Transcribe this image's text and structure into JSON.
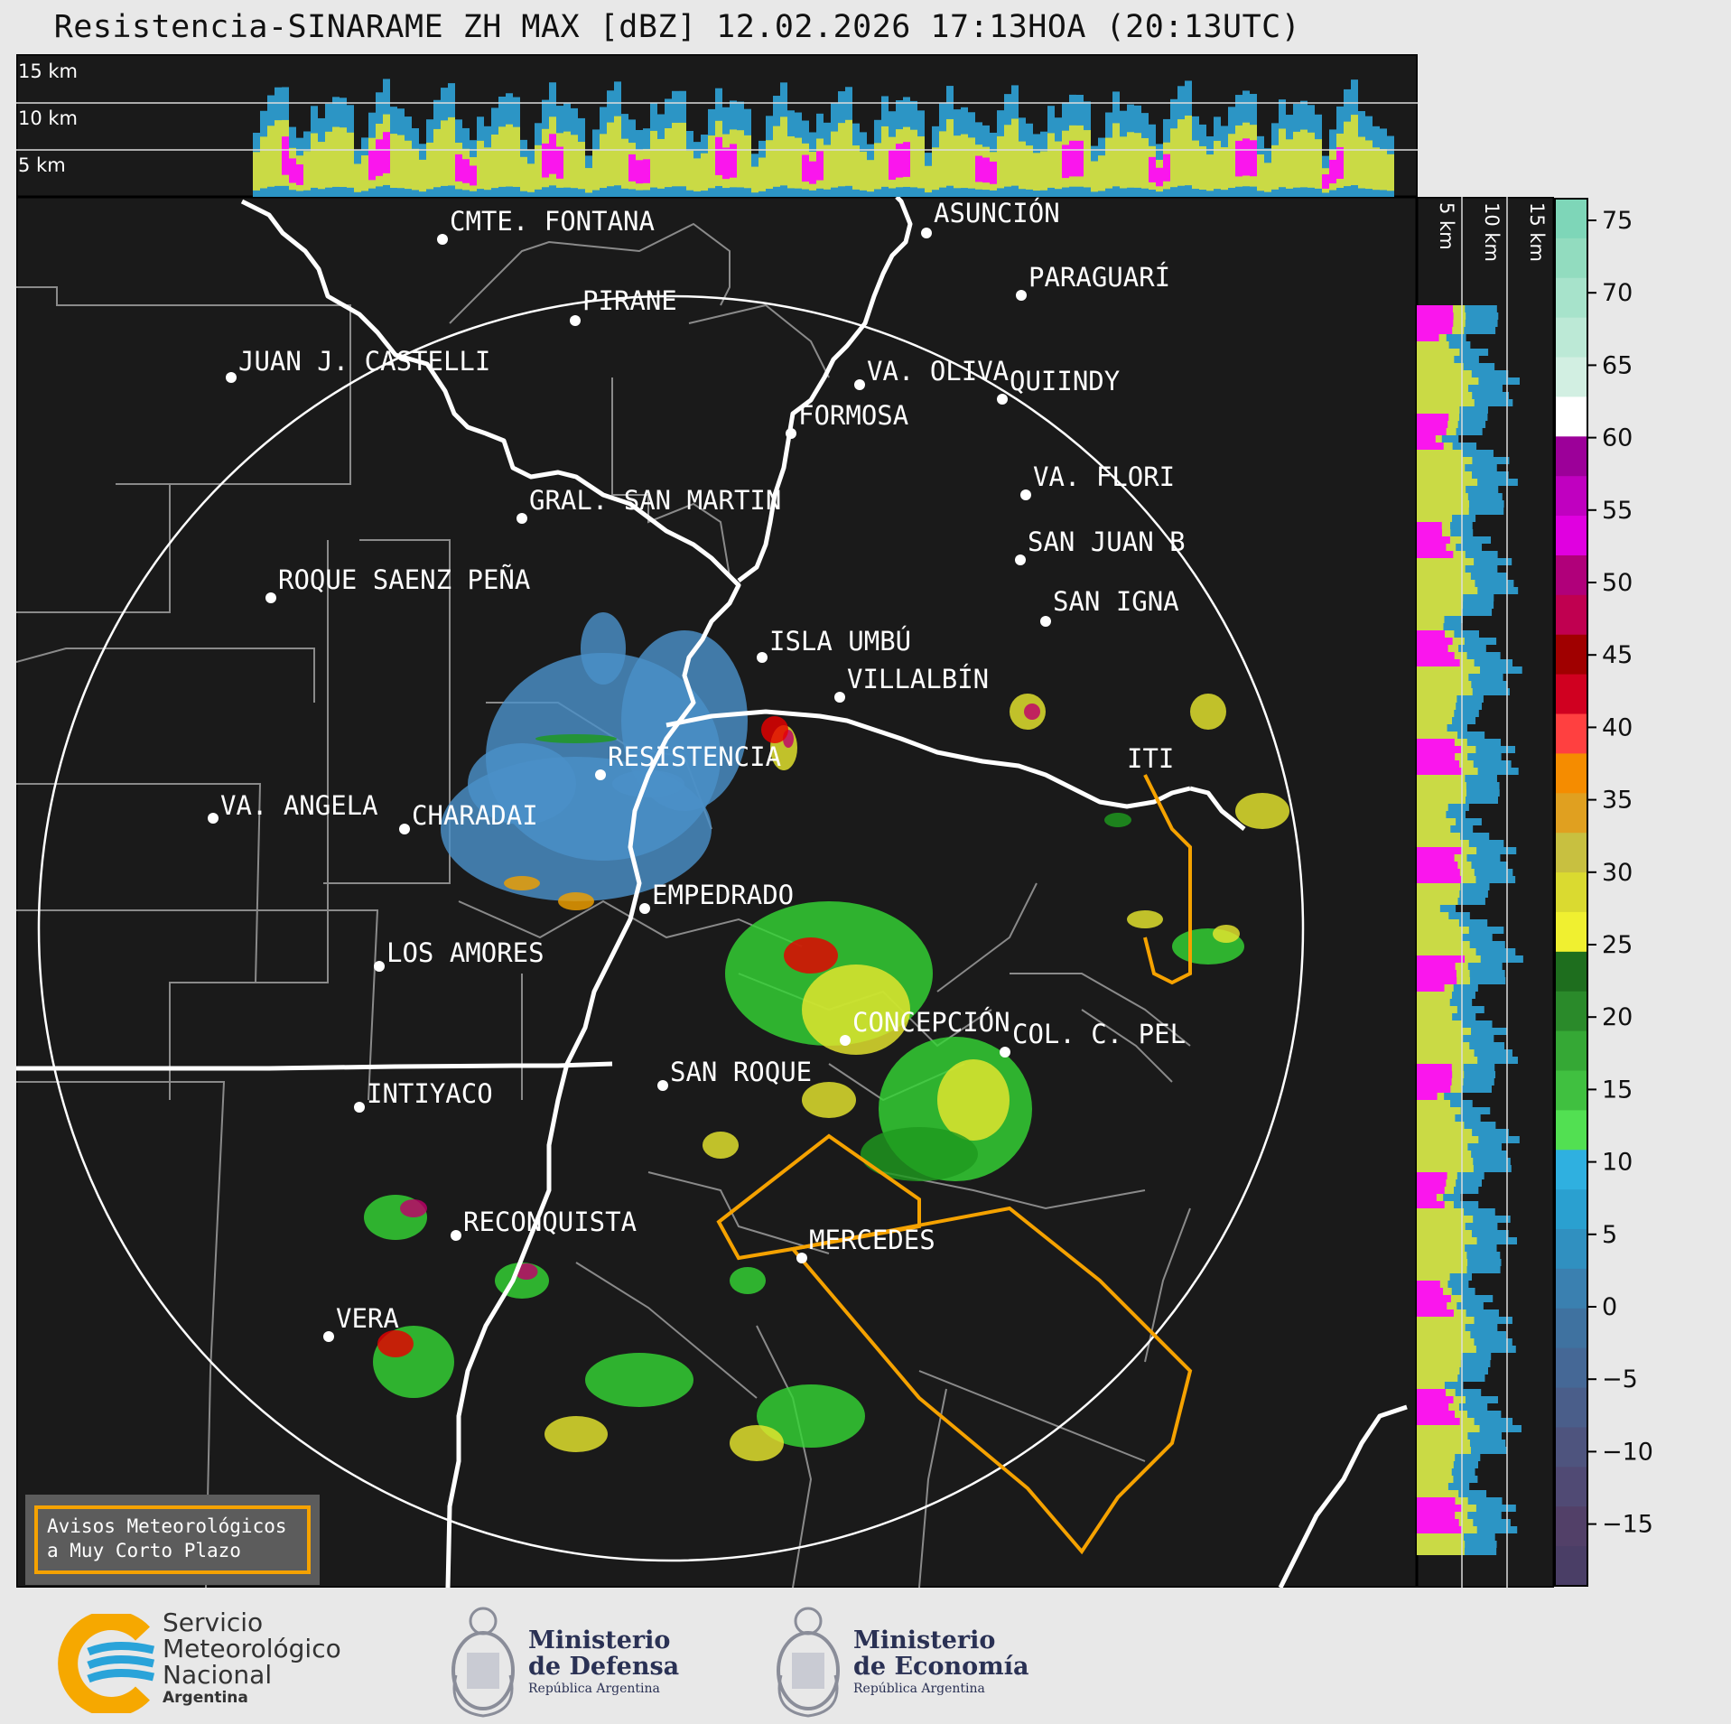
{
  "title": "Resistencia-SINARAME ZH MAX [dBZ] 12.02.2026 17:13HOA (20:13UTC)",
  "profile_top": {
    "levels": [
      "15 km",
      "10 km",
      "5 km"
    ]
  },
  "profile_right": {
    "levels": [
      "5 km",
      "10 km",
      "15 km"
    ]
  },
  "colorbar": {
    "unit": "dBZ",
    "ticks": [
      "75",
      "70",
      "65",
      "60",
      "55",
      "50",
      "45",
      "40",
      "35",
      "30",
      "25",
      "20",
      "15",
      "10",
      "5",
      "0",
      "−5",
      "−10",
      "−15"
    ]
  },
  "places": [
    {
      "name": "CMTE. FONTANA"
    },
    {
      "name": "ASUNCIÓN"
    },
    {
      "name": "PARAGUARÍ"
    },
    {
      "name": "PIRANE"
    },
    {
      "name": "JUAN J. CASTELLI"
    },
    {
      "name": "VA. OLIVA"
    },
    {
      "name": "QUIINDY"
    },
    {
      "name": "FORMOSA"
    },
    {
      "name": "VA. FLORI"
    },
    {
      "name": "GRAL. SAN MARTIN"
    },
    {
      "name": "SAN JUAN B"
    },
    {
      "name": "ROQUE SAENZ PEÑA"
    },
    {
      "name": "SAN IGNA"
    },
    {
      "name": "ISLA UMBÚ"
    },
    {
      "name": "VILLALBÍN"
    },
    {
      "name": "RESISTENCIA"
    },
    {
      "name": "VA. ANGELA"
    },
    {
      "name": "CHARADAI"
    },
    {
      "name": "EMPEDRADO"
    },
    {
      "name": "LOS AMORES"
    },
    {
      "name": "CONCEPCIÓN"
    },
    {
      "name": "SAN ROQUE"
    },
    {
      "name": "COL. C. PEL"
    },
    {
      "name": "INTIYACO"
    },
    {
      "name": "RECONQUISTA"
    },
    {
      "name": "MERCEDES"
    },
    {
      "name": "VERA"
    },
    {
      "name": "ITI"
    }
  ],
  "warning_box": {
    "line1": "Avisos Meteorológicos",
    "line2": "a Muy Corto Plazo"
  },
  "footer": {
    "smn": {
      "line1": "Servicio",
      "line2": "Meteorológico",
      "line3": "Nacional",
      "line4": "Argentina"
    },
    "defensa": {
      "line1": "Ministerio",
      "line2": "de Defensa",
      "line3": "República Argentina"
    },
    "economia": {
      "line1": "Ministerio",
      "line2": "de Economía",
      "line3": "República Argentina"
    }
  },
  "colors": {
    "map_bg": "#1a1a1a",
    "warning": "#f5a200",
    "border": "#ffffff",
    "dept": "#8a8a8a"
  }
}
